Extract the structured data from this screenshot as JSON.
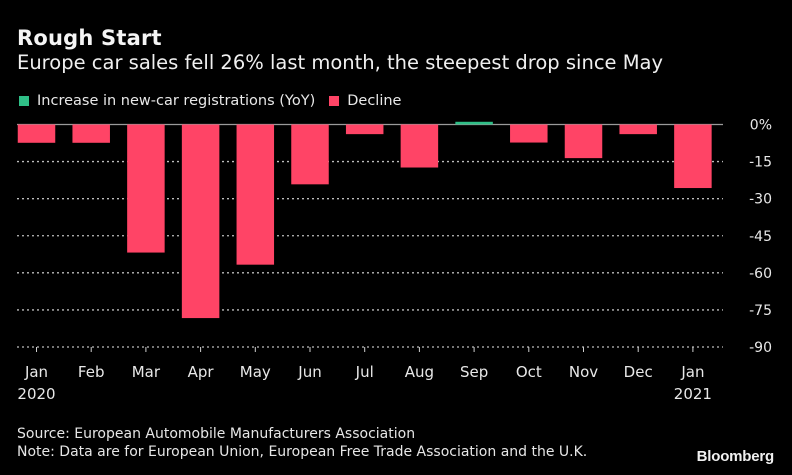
{
  "header": {
    "title": "Rough Start",
    "subtitle": "Europe car sales fell 26% last month, the steepest drop since May"
  },
  "legend": [
    {
      "label": "Increase in new-car registrations (YoY)",
      "color": "#2fbf87"
    },
    {
      "label": "Decline",
      "color": "#ff4466"
    }
  ],
  "footer": {
    "source": "Source: European Automobile Manufacturers Association",
    "note": "Note: Data are for European Union, European Free Trade Association and the U.K.",
    "brand": "Bloomberg"
  },
  "chart_data": {
    "type": "bar",
    "title": "Rough Start",
    "subtitle": "Europe car sales fell 26% last month, the steepest drop since May",
    "xlabel": "",
    "ylabel": "",
    "categories": [
      "Jan",
      "Feb",
      "Mar",
      "Apr",
      "May",
      "Jun",
      "Jul",
      "Aug",
      "Sep",
      "Oct",
      "Nov",
      "Dec",
      "Jan"
    ],
    "category_sublabels": [
      "2020",
      "",
      "",
      "",
      "",
      "",
      "",
      "",
      "",
      "",
      "",
      "",
      "2021"
    ],
    "series": [
      {
        "name": "Increase in new-car registrations (YoY) / Decline",
        "values": [
          -7.4,
          -7.4,
          -51.8,
          -78.3,
          -56.7,
          -24.2,
          -3.9,
          -17.4,
          1.1,
          -7.3,
          -13.6,
          -3.9,
          -25.7
        ]
      }
    ],
    "colors": {
      "positive": "#2fbf87",
      "negative": "#ff4466"
    },
    "ylim": [
      -90,
      0
    ],
    "yticks": [
      0,
      -15,
      -30,
      -45,
      -60,
      -75,
      -90
    ],
    "ytick_labels": [
      "0%",
      "-15",
      "-30",
      "-45",
      "-60",
      "-75",
      "-90"
    ],
    "y_axis_position": "right",
    "grid": true,
    "legend_position": "top-left"
  }
}
